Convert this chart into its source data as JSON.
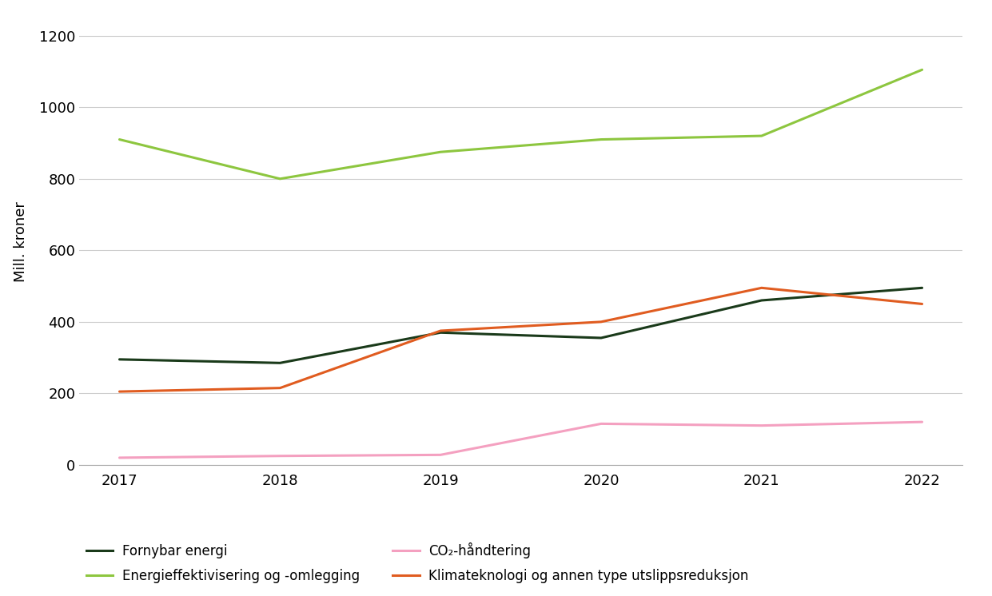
{
  "years": [
    2017,
    2018,
    2019,
    2020,
    2021,
    2022
  ],
  "fornybar_energi": [
    295,
    285,
    370,
    355,
    460,
    495
  ],
  "energieffektivisering": [
    910,
    800,
    875,
    910,
    920,
    1105
  ],
  "co2_handtering": [
    20,
    25,
    28,
    115,
    110,
    120
  ],
  "klimateknologi": [
    205,
    215,
    375,
    400,
    495,
    450
  ],
  "color_fornybar": "#1a3a1a",
  "color_energi": "#8dc63f",
  "color_co2": "#f4a0c0",
  "color_klima": "#e05c20",
  "ylabel": "Mill. kroner",
  "ylim": [
    0,
    1250
  ],
  "yticks": [
    0,
    200,
    400,
    600,
    800,
    1000,
    1200
  ],
  "legend_fornybar": "Fornybar energi",
  "legend_energi": "Energieffektivisering og -omlegging",
  "legend_co2": "CO₂-håndtering",
  "legend_klima": "Klimateknologi og annen type utslippsreduksjon",
  "background_color": "#ffffff",
  "linewidth": 2.2
}
